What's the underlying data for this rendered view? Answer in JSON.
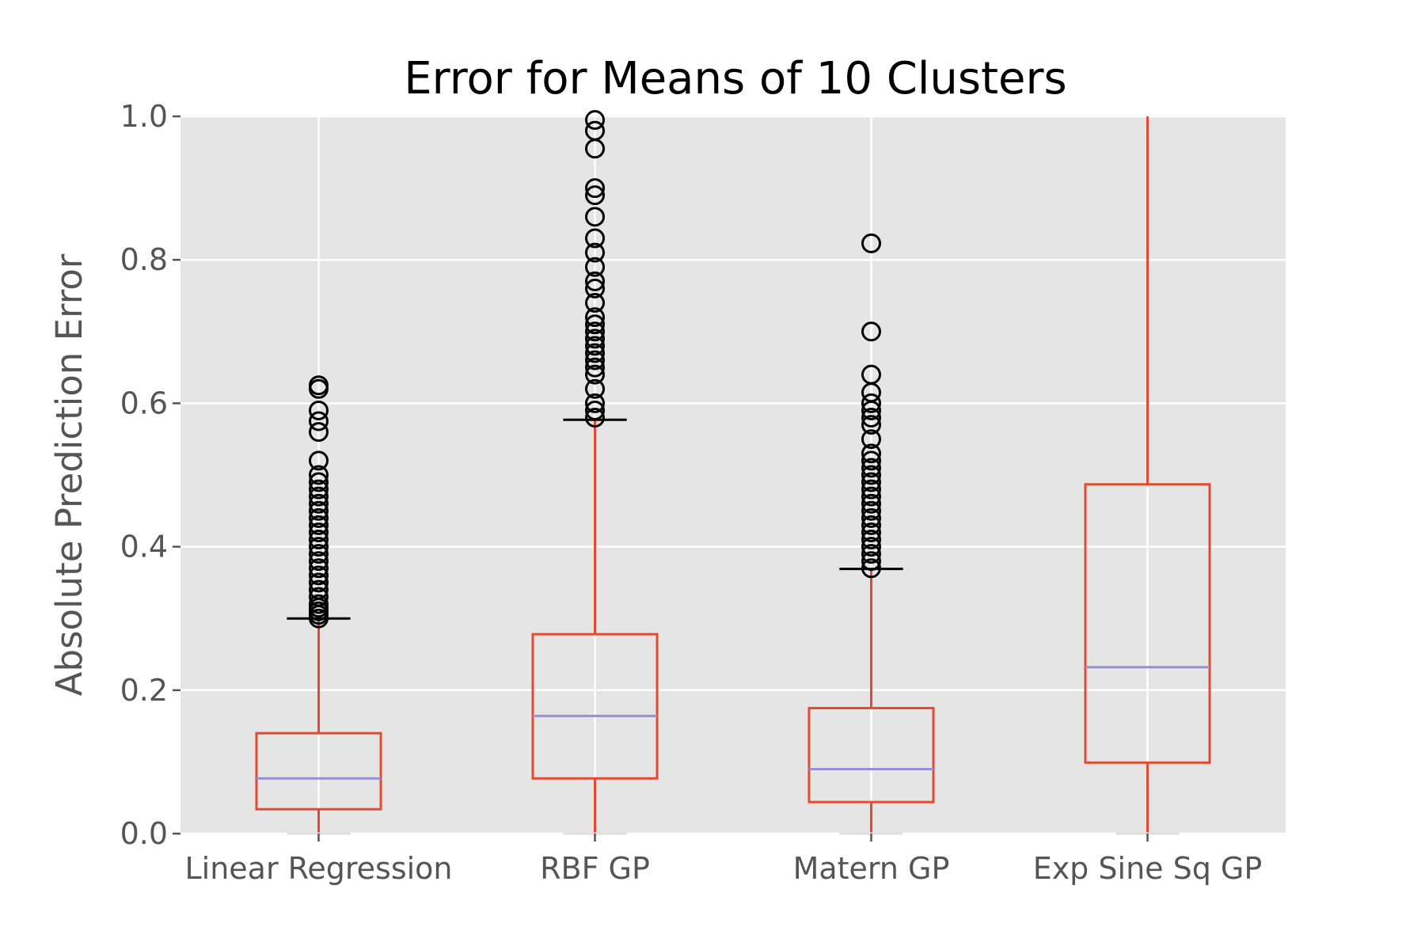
{
  "chart_data": {
    "type": "box",
    "title": "Error for Means of 10 Clusters",
    "xlabel": "",
    "ylabel": "Absolute Prediction Error",
    "ylim": [
      0.0,
      1.0
    ],
    "yticks": [
      "0.0",
      "0.2",
      "0.4",
      "0.6",
      "0.8",
      "1.0"
    ],
    "grid": true,
    "colors": {
      "background": "#e5e5e5",
      "box": "#e24a33",
      "median": "#988ed5",
      "cap": "#000000",
      "flier": "#000000"
    },
    "categories": [
      "Linear Regression",
      "RBF GP",
      "Matern GP",
      "Exp Sine Sq GP"
    ],
    "boxes": [
      {
        "q1": 0.034,
        "median": 0.077,
        "q3": 0.14,
        "whisker_low": 0.0,
        "whisker_high": 0.3,
        "cap_high": true,
        "fliers": [
          0.3,
          0.305,
          0.31,
          0.315,
          0.32,
          0.33,
          0.34,
          0.35,
          0.36,
          0.37,
          0.38,
          0.39,
          0.4,
          0.41,
          0.42,
          0.43,
          0.44,
          0.45,
          0.46,
          0.47,
          0.48,
          0.49,
          0.5,
          0.52,
          0.56,
          0.575,
          0.59,
          0.62,
          0.625
        ]
      },
      {
        "q1": 0.077,
        "median": 0.164,
        "q3": 0.278,
        "whisker_low": 0.0,
        "whisker_high": 0.577,
        "cap_high": true,
        "fliers": [
          0.58,
          0.59,
          0.6,
          0.62,
          0.64,
          0.65,
          0.66,
          0.67,
          0.68,
          0.69,
          0.7,
          0.71,
          0.72,
          0.74,
          0.76,
          0.77,
          0.79,
          0.81,
          0.83,
          0.86,
          0.89,
          0.9,
          0.955,
          0.98,
          0.995
        ]
      },
      {
        "q1": 0.044,
        "median": 0.09,
        "q3": 0.175,
        "whisker_low": 0.0,
        "whisker_high": 0.369,
        "cap_high": true,
        "fliers": [
          0.37,
          0.38,
          0.39,
          0.4,
          0.41,
          0.42,
          0.43,
          0.44,
          0.45,
          0.46,
          0.47,
          0.48,
          0.49,
          0.5,
          0.51,
          0.52,
          0.53,
          0.55,
          0.57,
          0.58,
          0.59,
          0.6,
          0.615,
          0.64,
          0.7,
          0.823
        ]
      },
      {
        "q1": 0.099,
        "median": 0.232,
        "q3": 0.487,
        "whisker_low": 0.0,
        "whisker_high": 1.0,
        "cap_high": false,
        "fliers": []
      }
    ]
  }
}
